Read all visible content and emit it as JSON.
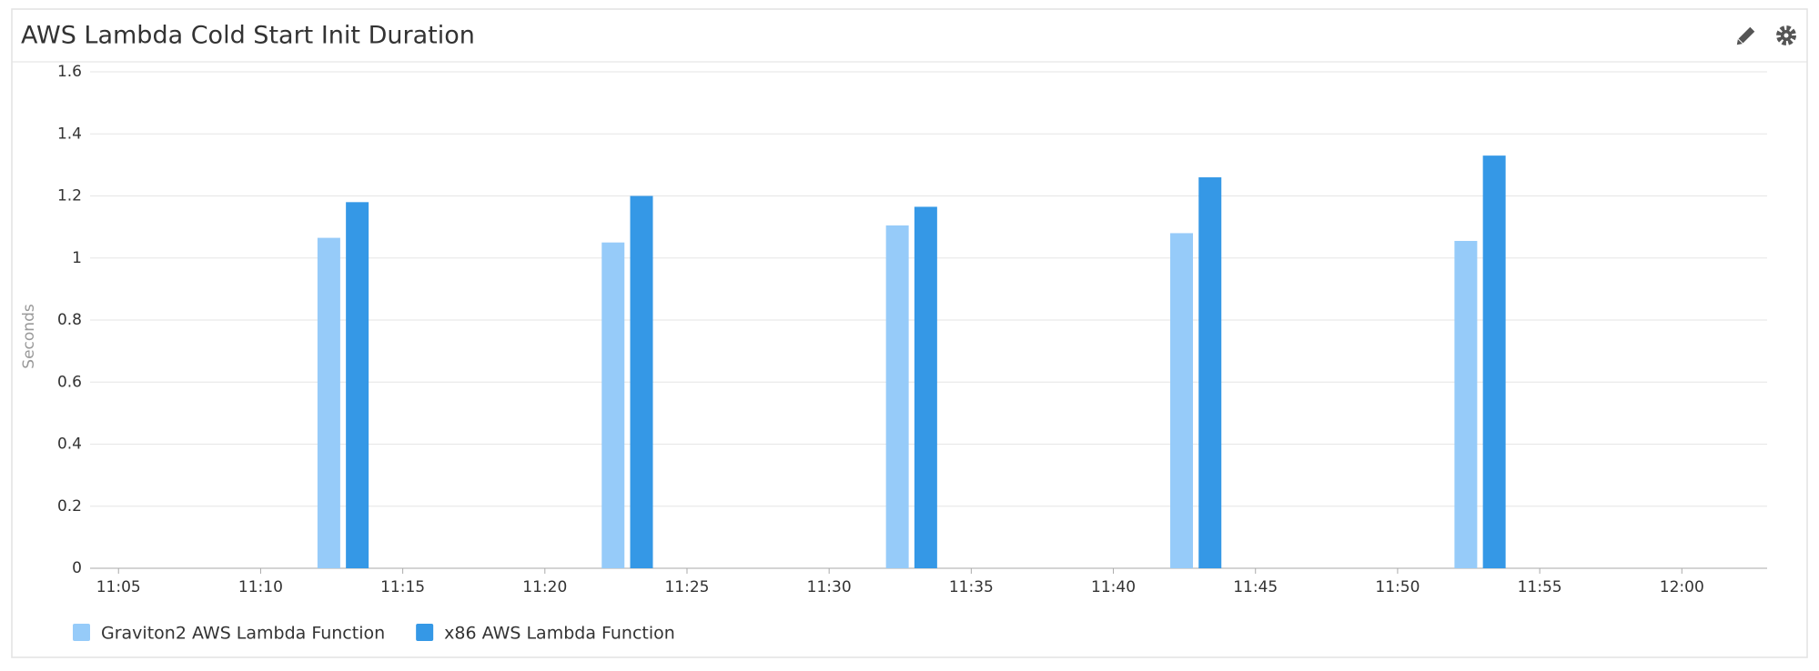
{
  "chart_data": {
    "type": "bar",
    "title": "AWS Lambda Cold Start Init Duration",
    "y_label": "Seconds",
    "xlim": [
      "11:04",
      "12:03"
    ],
    "xticks": [
      "11:05",
      "11:10",
      "11:15",
      "11:20",
      "11:25",
      "11:30",
      "11:35",
      "11:40",
      "11:45",
      "11:50",
      "11:55",
      "12:00"
    ],
    "ylim": [
      0,
      1.6
    ],
    "yticks": [
      0,
      0.2,
      0.4,
      0.6,
      0.8,
      1,
      1.2,
      1.4,
      1.6
    ],
    "grid": true,
    "series": [
      {
        "name": "Graviton2 AWS Lambda Function",
        "color": "#96cbf9",
        "x": [
          "11:12",
          "11:22",
          "11:32",
          "11:42",
          "11:52"
        ],
        "values": [
          1.065,
          1.05,
          1.105,
          1.08,
          1.055
        ]
      },
      {
        "name": "x86 AWS Lambda Function",
        "color": "#3598e6",
        "x": [
          "11:13",
          "11:23",
          "11:33",
          "11:43",
          "11:53"
        ],
        "values": [
          1.18,
          1.2,
          1.165,
          1.26,
          1.33
        ]
      }
    ]
  }
}
